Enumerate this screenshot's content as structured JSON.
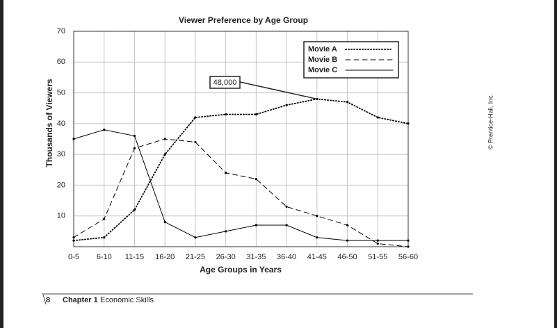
{
  "chart_data": {
    "type": "line",
    "title": "Viewer Preference by Age Group",
    "x_label": "Age Groups in Years",
    "y_label": "Thousands of Viewers",
    "categories": [
      "0-5",
      "6-10",
      "11-15",
      "16-20",
      "21-25",
      "26-30",
      "31-35",
      "36-40",
      "41-45",
      "46-50",
      "51-55",
      "56-60"
    ],
    "series": [
      {
        "name": "Movie A",
        "color": "#000000",
        "dash": "dotted",
        "values": [
          2,
          3,
          12,
          30,
          42,
          43,
          43,
          46,
          48,
          47,
          42,
          40
        ]
      },
      {
        "name": "Movie B",
        "color": "#000000",
        "dash": "dashed",
        "values": [
          3,
          9,
          32,
          35,
          34,
          24,
          22,
          13,
          10,
          7,
          1,
          0
        ]
      },
      {
        "name": "Movie C",
        "color": "#000000",
        "dash": "solid",
        "values": [
          35,
          38,
          36,
          8,
          3,
          5,
          7,
          7,
          3,
          2,
          2,
          2
        ]
      }
    ],
    "ylim": [
      0,
      70
    ],
    "yticks": [
      10,
      20,
      30,
      40,
      50,
      60,
      70
    ],
    "grid": true,
    "legend": "top-right",
    "annotation": "48,000"
  },
  "copyright": "© Prentice-Hall, Inc.",
  "footer": {
    "page": "8",
    "chapter": "Chapter 1",
    "section": "Economic Skills"
  }
}
